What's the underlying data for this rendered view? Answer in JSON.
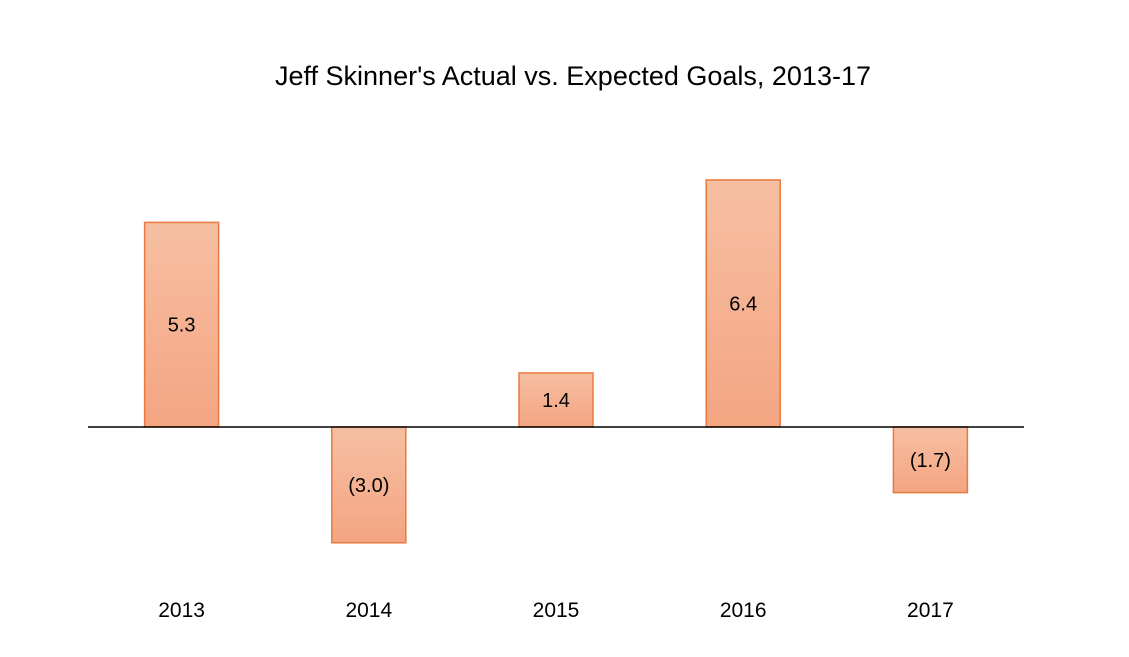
{
  "chart_data": {
    "type": "bar",
    "title": "Jeff Skinner's Actual vs. Expected Goals, 2013-17",
    "xlabel": "",
    "ylabel": "",
    "categories": [
      "2013",
      "2014",
      "2015",
      "2016",
      "2017"
    ],
    "values": [
      5.3,
      -3.0,
      1.4,
      6.4,
      -1.7
    ],
    "data_labels": [
      "5.3",
      "(3.0)",
      "1.4",
      "6.4",
      "(1.7)"
    ],
    "ylim": [
      -4,
      7
    ],
    "grid": false,
    "legend": "none",
    "colors": {
      "bar_fill_top": "#f6bfa2",
      "bar_fill_bottom": "#f4a582",
      "bar_stroke": "#e87a3f",
      "zero_line": "#000000"
    }
  }
}
